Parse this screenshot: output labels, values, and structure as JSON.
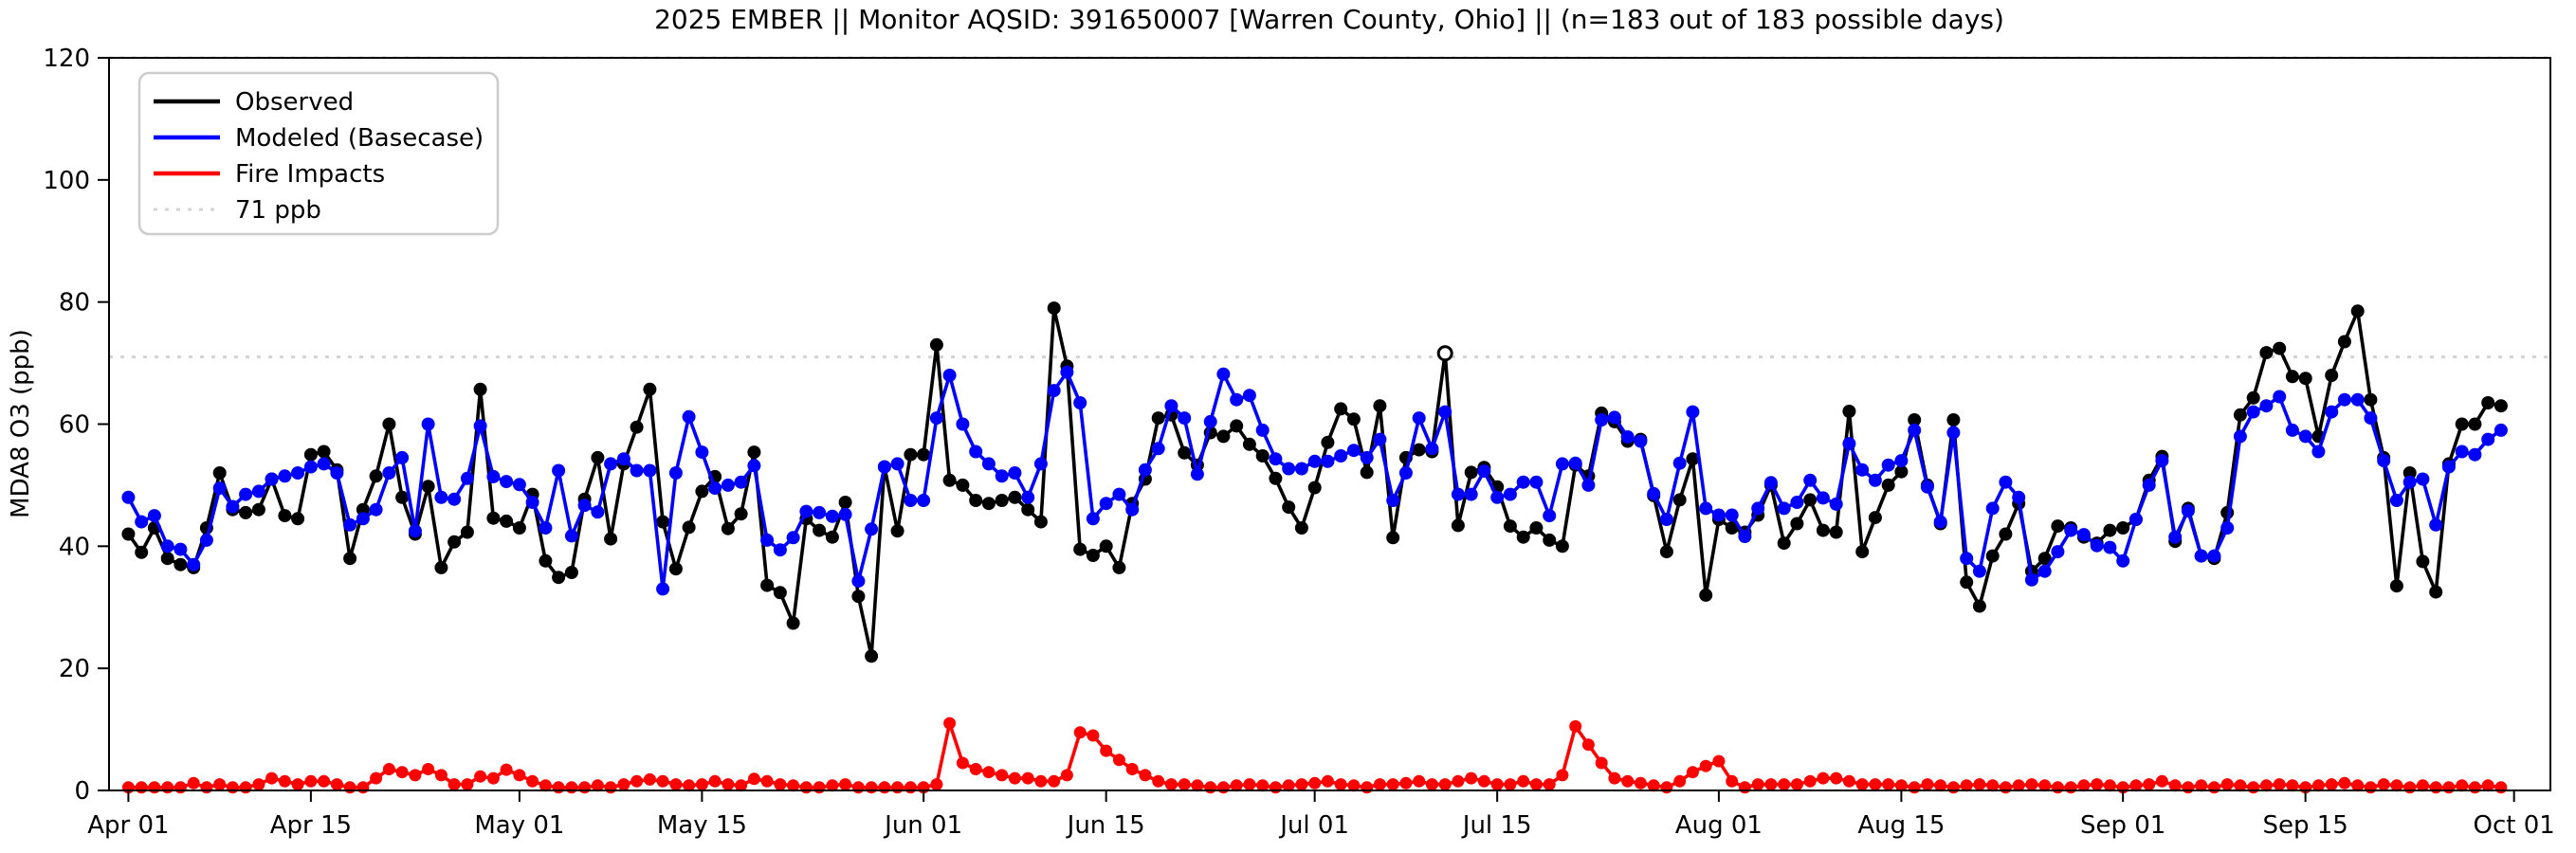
{
  "chart_data": {
    "type": "line",
    "title": "2025 EMBER || Monitor AQSID: 391650007 [Warren County, Ohio] || (n=183 out of 183 possible days)",
    "ylabel": "MDA8 O3 (ppb)",
    "ylim": [
      0,
      120
    ],
    "yticks": [
      0,
      20,
      40,
      60,
      80,
      100,
      120
    ],
    "x_start_date": "Apr 01",
    "x_end_date": "Oct 01",
    "n_days": 183,
    "xticks": {
      "labels": [
        "Apr 01",
        "Apr 15",
        "May 01",
        "May 15",
        "Jun 01",
        "Jun 15",
        "Jul 01",
        "Jul 15",
        "Aug 01",
        "Aug 15",
        "Sep 01",
        "Sep 15",
        "Oct 01"
      ],
      "days": [
        0,
        14,
        30,
        44,
        61,
        75,
        91,
        105,
        122,
        136,
        153,
        167,
        183
      ]
    },
    "grid": false,
    "legend_position": "upper-left",
    "ref_line": {
      "value": 71,
      "label": "71 ppb",
      "color": "#d3d3d3",
      "style": "dotted"
    },
    "top_ref_value": 120,
    "open_marker": {
      "series": "Observed",
      "day": 101
    },
    "series": [
      {
        "name": "Observed",
        "color": "#000000",
        "values": [
          42,
          39,
          43,
          38,
          37,
          36.5,
          43,
          52,
          46,
          45.5,
          46,
          51,
          45,
          44.5,
          55,
          55.5,
          52.5,
          38,
          46,
          51.5,
          60,
          48,
          42,
          49.8,
          36.5,
          40.7,
          42.3,
          65.7,
          44.6,
          44.1,
          43,
          48.5,
          37.6,
          34.9,
          35.7,
          47.7,
          54.5,
          41.2,
          53.5,
          59.5,
          65.7,
          44,
          36.3,
          43.1,
          49,
          51.4,
          42.9,
          45.3,
          55.4,
          33.6,
          32.4,
          27.4,
          44.5,
          42.6,
          41.5,
          47.2,
          31.8,
          22,
          53,
          42.5,
          55,
          55,
          73,
          50.8,
          50,
          47.5,
          47,
          47.5,
          48,
          46,
          44,
          79,
          69.5,
          39.5,
          38.5,
          40,
          36.5,
          47,
          51,
          61,
          61.5,
          55.3,
          53.3,
          58.6,
          58,
          59.7,
          56.7,
          54.8,
          51.1,
          46.4,
          43,
          49.6,
          57,
          62.5,
          60.8,
          52.1,
          63,
          41.4,
          54.5,
          55.8,
          55.5,
          71.6,
          43.4,
          52.1,
          52.9,
          49.7,
          43.3,
          41.5,
          43,
          41,
          40,
          53.3,
          51.5,
          61.8,
          60.4,
          57.2,
          57.5,
          48.3,
          39.1,
          47.6,
          54.3,
          32,
          44.4,
          43,
          42.3,
          45.1,
          50,
          40.5,
          43.7,
          47.6,
          42.6,
          42.3,
          62.1,
          39.1,
          44.7,
          50,
          52.2,
          60.7,
          50,
          43.7,
          60.7,
          34.1,
          30.2,
          38.4,
          42,
          47,
          35.9,
          38,
          43.3,
          43,
          41.5,
          40.5,
          42.6,
          43,
          44.4,
          50.8,
          54.7,
          40.8,
          46.2,
          38.4,
          38,
          45.5,
          61.5,
          64.3,
          71.7,
          72.4,
          67.8,
          67.5,
          58,
          68,
          73.5,
          78.5,
          64,
          54.5,
          33.5,
          52,
          37.5,
          32.5,
          53.5,
          60,
          60,
          63.5,
          63
        ]
      },
      {
        "name": "Modeled (Basecase)",
        "color": "#0000ff",
        "values": [
          48,
          44,
          45,
          40,
          39.5,
          37,
          41,
          49.5,
          46.5,
          48.5,
          49,
          51,
          51.5,
          52,
          53,
          53.5,
          52,
          43.5,
          44.5,
          46,
          52,
          54.5,
          42.5,
          60,
          48,
          47.7,
          51.1,
          59.7,
          51.4,
          50.6,
          50.1,
          47.2,
          43,
          52.4,
          41.7,
          46.7,
          45.6,
          53.5,
          54.3,
          52.4,
          52.4,
          33,
          52,
          61.2,
          55.4,
          49.5,
          50,
          50.5,
          53.2,
          41,
          39.4,
          41.4,
          45.7,
          45.5,
          44.9,
          45.2,
          34.3,
          42.8,
          53,
          53.5,
          47.5,
          47.5,
          61,
          68,
          60,
          55.5,
          53.5,
          51.5,
          52,
          48,
          53.5,
          65.5,
          68.5,
          63.5,
          44.5,
          47,
          48.5,
          46,
          52.5,
          56,
          63,
          61,
          51.8,
          60.4,
          68.2,
          64,
          64.7,
          59,
          54.3,
          52.7,
          52.7,
          53.9,
          53.9,
          54.8,
          55.7,
          54.5,
          57.5,
          47.5,
          52,
          61,
          56,
          62,
          48.5,
          48.5,
          52.3,
          48,
          48.5,
          50.5,
          50.5,
          45,
          53.5,
          53.6,
          50,
          60.7,
          61.1,
          57.9,
          57.2,
          48.6,
          44.4,
          53.6,
          62,
          46.2,
          45.1,
          45.1,
          41.6,
          46.2,
          50.4,
          46.2,
          47.2,
          50.8,
          47.9,
          46.9,
          56.8,
          52.5,
          50.8,
          53.3,
          54,
          59,
          49.7,
          44,
          58.6,
          38,
          35.9,
          46.2,
          50.5,
          48,
          34.5,
          35.9,
          39.1,
          42.6,
          41.9,
          40.1,
          39.8,
          37.6,
          44.4,
          50,
          54,
          41.5,
          45.8,
          38.4,
          38.4,
          43,
          58,
          62,
          63,
          64.5,
          59,
          58,
          55.5,
          62,
          64,
          64,
          61,
          54,
          47.5,
          50.5,
          51,
          43.5,
          53,
          55.5,
          55,
          57.5,
          59
        ]
      },
      {
        "name": "Fire Impacts",
        "color": "#ff0000",
        "values": [
          0.5,
          0.5,
          0.5,
          0.5,
          0.5,
          1.2,
          0.5,
          1,
          0.5,
          0.5,
          1,
          2,
          1.5,
          1,
          1.5,
          1.5,
          1,
          0.5,
          0.5,
          2,
          3.5,
          3,
          2.5,
          3.5,
          2.5,
          1,
          1,
          2.3,
          2,
          3.4,
          2.5,
          1.5,
          0.8,
          0.5,
          0.5,
          0.5,
          0.8,
          0.5,
          1,
          1.5,
          1.8,
          1.5,
          1,
          0.8,
          1,
          1.5,
          1,
          0.8,
          1.9,
          1.5,
          1,
          0.8,
          0.5,
          0.5,
          0.8,
          1,
          0.5,
          0.5,
          0.5,
          0.5,
          0.5,
          0.5,
          1,
          11,
          4.5,
          3.5,
          3,
          2.5,
          2,
          2,
          1.5,
          1.5,
          2.5,
          9.5,
          9,
          6.5,
          5,
          3.5,
          2.5,
          1.5,
          1,
          1,
          0.8,
          0.5,
          0.5,
          0.8,
          1,
          0.8,
          0.5,
          0.8,
          1,
          1.2,
          1.5,
          1,
          0.8,
          0.5,
          1,
          1,
          1.2,
          1.5,
          1,
          1,
          1.5,
          2,
          1.5,
          1,
          1,
          1.5,
          1,
          1,
          2.5,
          10.5,
          7.5,
          4.5,
          2,
          1.5,
          1.2,
          0.8,
          0.5,
          1.5,
          3,
          4,
          4.8,
          1.5,
          0.5,
          1,
          1,
          1,
          1,
          1.5,
          2,
          2,
          1.5,
          1,
          1,
          1,
          0.8,
          0.5,
          1,
          0.8,
          0.5,
          0.8,
          1,
          0.8,
          0.5,
          0.8,
          1,
          0.8,
          0.5,
          0.5,
          0.8,
          1,
          0.8,
          0.5,
          0.8,
          1,
          1.5,
          0.8,
          0.5,
          0.8,
          0.5,
          1,
          0.8,
          0.5,
          0.8,
          1,
          0.8,
          0.5,
          0.8,
          1,
          1.2,
          0.8,
          0.5,
          1,
          0.8,
          0.5,
          0.8,
          0.5,
          0.5,
          0.8,
          0.5,
          0.8,
          0.5
        ]
      }
    ],
    "legend_entries": [
      "Observed",
      "Modeled (Basecase)",
      "Fire Impacts",
      "71 ppb"
    ]
  }
}
